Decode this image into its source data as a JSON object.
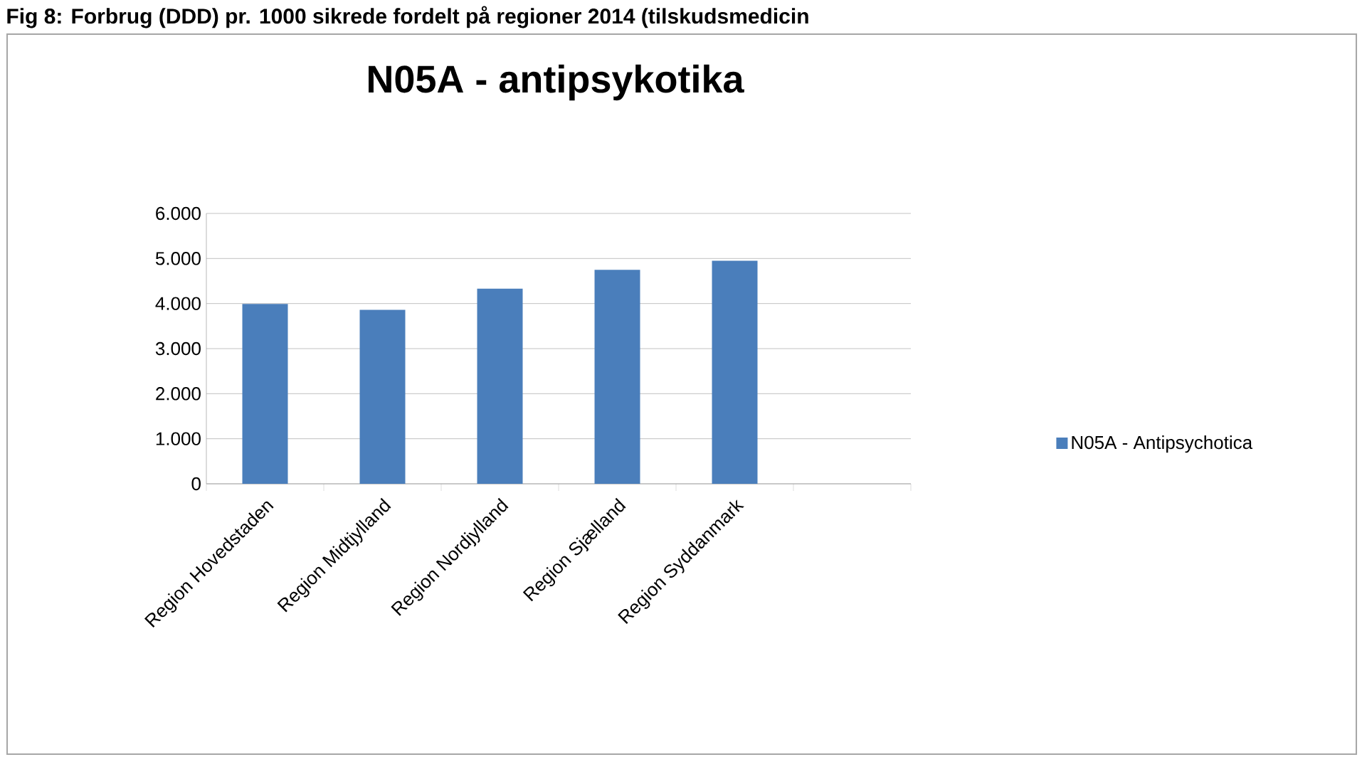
{
  "chart_data": {
    "type": "bar",
    "title": "N05A - antipsykotika",
    "annotations": [
      "Fig 8: Forbrug (DDD) pr. 1000 sikrede fordelt på regioner 2014 (tilskudsmedicin"
    ],
    "categories": [
      "Region Hovedstaden",
      "Region Midtjylland",
      "Region Nordjylland",
      "Region Sjælland",
      "Region Syddanmark",
      null
    ],
    "series": [
      {
        "name": "N05A - Antipsychotica",
        "color": "#4a7ebb",
        "values": [
          3990,
          3860,
          4330,
          4750,
          4950,
          null
        ]
      }
    ],
    "ylim": [
      0,
      6000
    ],
    "yticks": [
      {
        "value": 0,
        "label": "0"
      },
      {
        "value": 1000,
        "label": "1.000"
      },
      {
        "value": 2000,
        "label": "2.000"
      },
      {
        "value": 3000,
        "label": "3.000"
      },
      {
        "value": 4000,
        "label": "4.000"
      },
      {
        "value": 5000,
        "label": "5.000"
      },
      {
        "value": 6000,
        "label": "6.000"
      }
    ],
    "grid": "y",
    "legend": "right"
  }
}
